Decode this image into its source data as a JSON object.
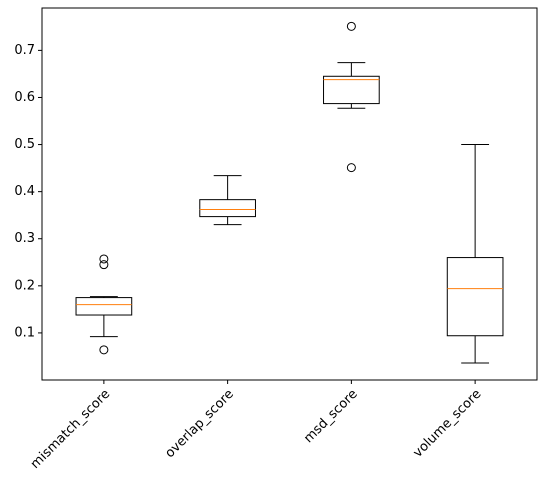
{
  "chart_data": {
    "type": "box",
    "categories": [
      "mismatch_score",
      "overlap_score",
      "msd_score",
      "volume_score"
    ],
    "boxes": [
      {
        "min": 0.092,
        "q1": 0.138,
        "median": 0.16,
        "q3": 0.175,
        "max": 0.177,
        "outliers": [
          0.257,
          0.245,
          0.064
        ]
      },
      {
        "min": 0.33,
        "q1": 0.347,
        "median": 0.362,
        "q3": 0.383,
        "max": 0.434,
        "outliers": []
      },
      {
        "min": 0.577,
        "q1": 0.587,
        "median": 0.638,
        "q3": 0.645,
        "max": 0.674,
        "outliers": [
          0.751,
          0.451
        ]
      },
      {
        "min": 0.036,
        "q1": 0.094,
        "median": 0.194,
        "q3": 0.26,
        "max": 0.5,
        "outliers": []
      }
    ],
    "box_color": "#000000",
    "median_color": "#ff7f0e",
    "ylim": [
      0.0,
      0.79
    ],
    "yticks": [
      0.1,
      0.2,
      0.3,
      0.4,
      0.5,
      0.6,
      0.7
    ],
    "grid": false
  }
}
